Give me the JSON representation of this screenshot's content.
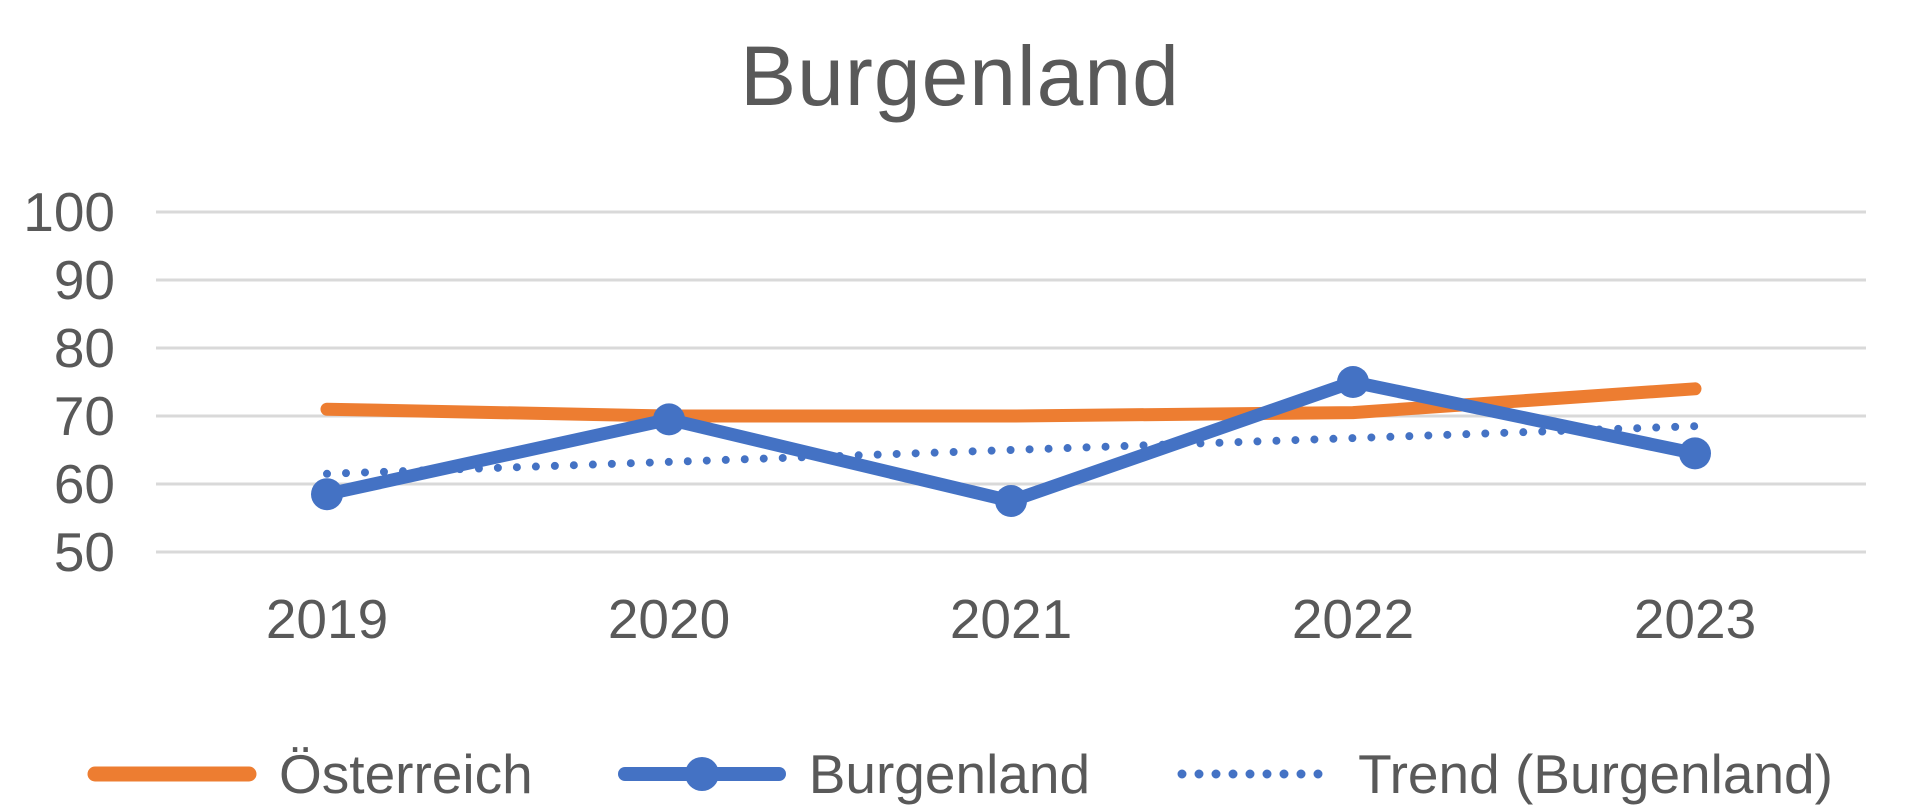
{
  "chart_data": {
    "type": "line",
    "title": "Burgenland",
    "categories": [
      "2019",
      "2020",
      "2021",
      "2022",
      "2023"
    ],
    "series": [
      {
        "name": "Österreich",
        "values": [
          71,
          70,
          70,
          70.5,
          74
        ],
        "color": "#ED7D31",
        "style": "solid",
        "marker": false
      },
      {
        "name": "Burgenland",
        "values": [
          58.5,
          69.5,
          57.5,
          75,
          64.5
        ],
        "color": "#4472C4",
        "style": "solid",
        "marker": true
      },
      {
        "name": "Trend (Burgenland)",
        "values": [
          61.5,
          63.25,
          65,
          66.75,
          68.5
        ],
        "color": "#4472C4",
        "style": "dotted",
        "marker": false
      }
    ],
    "ylim": [
      50,
      100
    ],
    "y_ticks": [
      100,
      90,
      80,
      70,
      60,
      50
    ],
    "xlabel": "",
    "ylabel": "",
    "grid": true,
    "legend_position": "bottom",
    "colors": {
      "gridline": "#D9D9D9",
      "axis_text": "#595959",
      "title_text": "#595959",
      "background": "#FFFFFF"
    }
  }
}
